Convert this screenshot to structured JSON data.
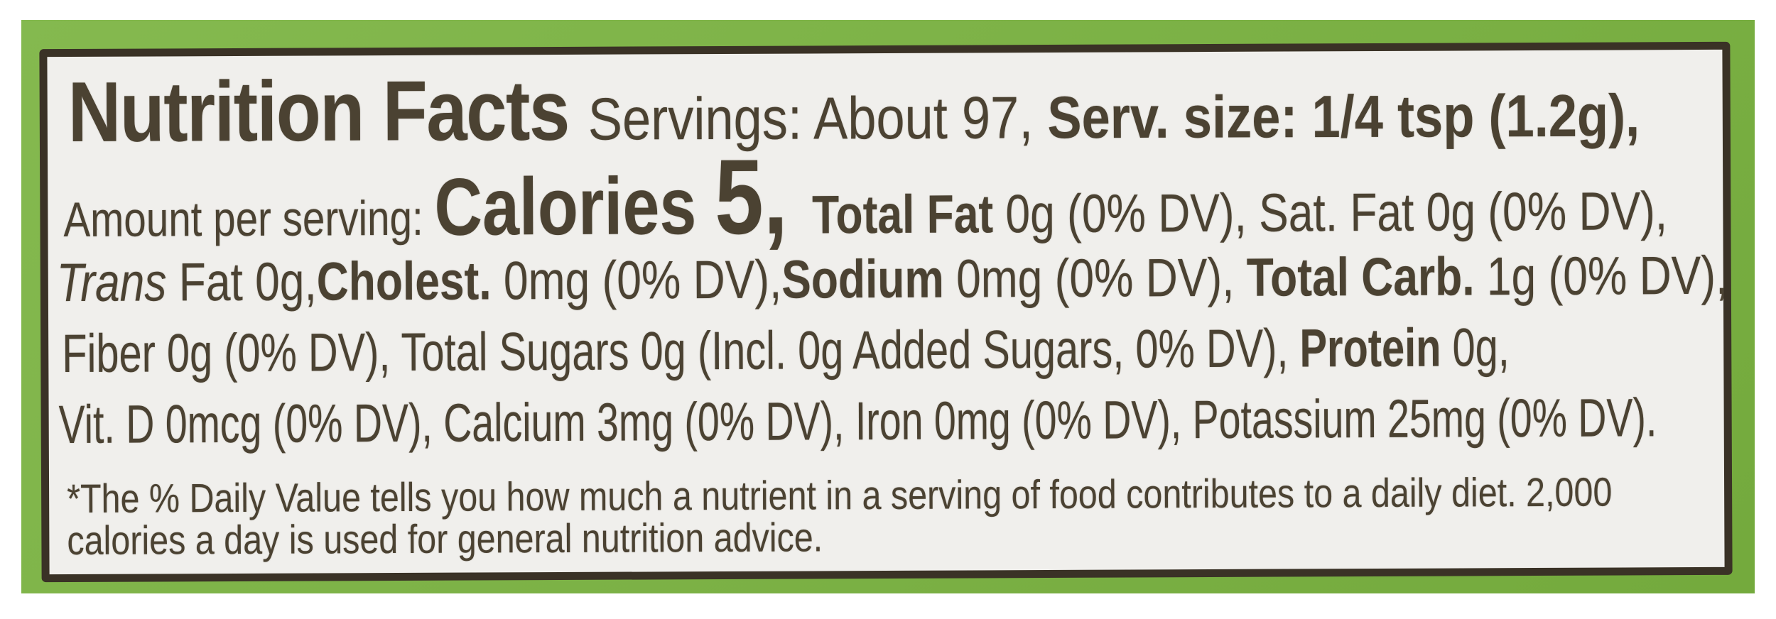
{
  "colors": {
    "frame_green": "#7ab340",
    "border_dark": "#3a3226",
    "label_bg": "#f0efec",
    "text_dark": "#4b4232",
    "page_bg": "#ffffff"
  },
  "label": {
    "line1": {
      "title": "Nutrition Facts ",
      "servings": "Servings: About 97, ",
      "serving_size": "Serv. size: 1/4 tsp (1.2g),"
    },
    "line2": {
      "amount_per_serving": "Amount per serving: ",
      "calories_word": "Calories ",
      "calories_value": "5, ",
      "total_fat_label": "Total Fat ",
      "fat_values": "0g (0% DV), Sat. Fat 0g (0% DV),"
    },
    "line3": {
      "trans": "Trans",
      "trans_fat_rest": " Fat 0g,",
      "cholest_label": "Cholest. ",
      "cholest_value": "0mg (0% DV),",
      "sodium_label": "Sodium  ",
      "sodium_value": "0mg (0% DV), ",
      "total_carb_label": "Total Carb. ",
      "total_carb_value": "1g (0% DV),"
    },
    "line4": {
      "fiber_and_sugars": "Fiber 0g (0% DV), Total Sugars 0g (Incl. 0g Added Sugars, 0% DV), ",
      "protein_label": "Protein ",
      "protein_value": "0g,"
    },
    "line5": {
      "micronutrients": "Vit. D 0mcg (0% DV), Calcium 3mg (0% DV), Iron 0mg (0% DV), Potassium 25mg (0% DV)."
    },
    "footnote": {
      "line1": "*The % Daily Value tells you how much a nutrient in a serving of food contributes to a daily diet. 2,000",
      "line2": "calories a day is used for general nutrition advice."
    }
  }
}
